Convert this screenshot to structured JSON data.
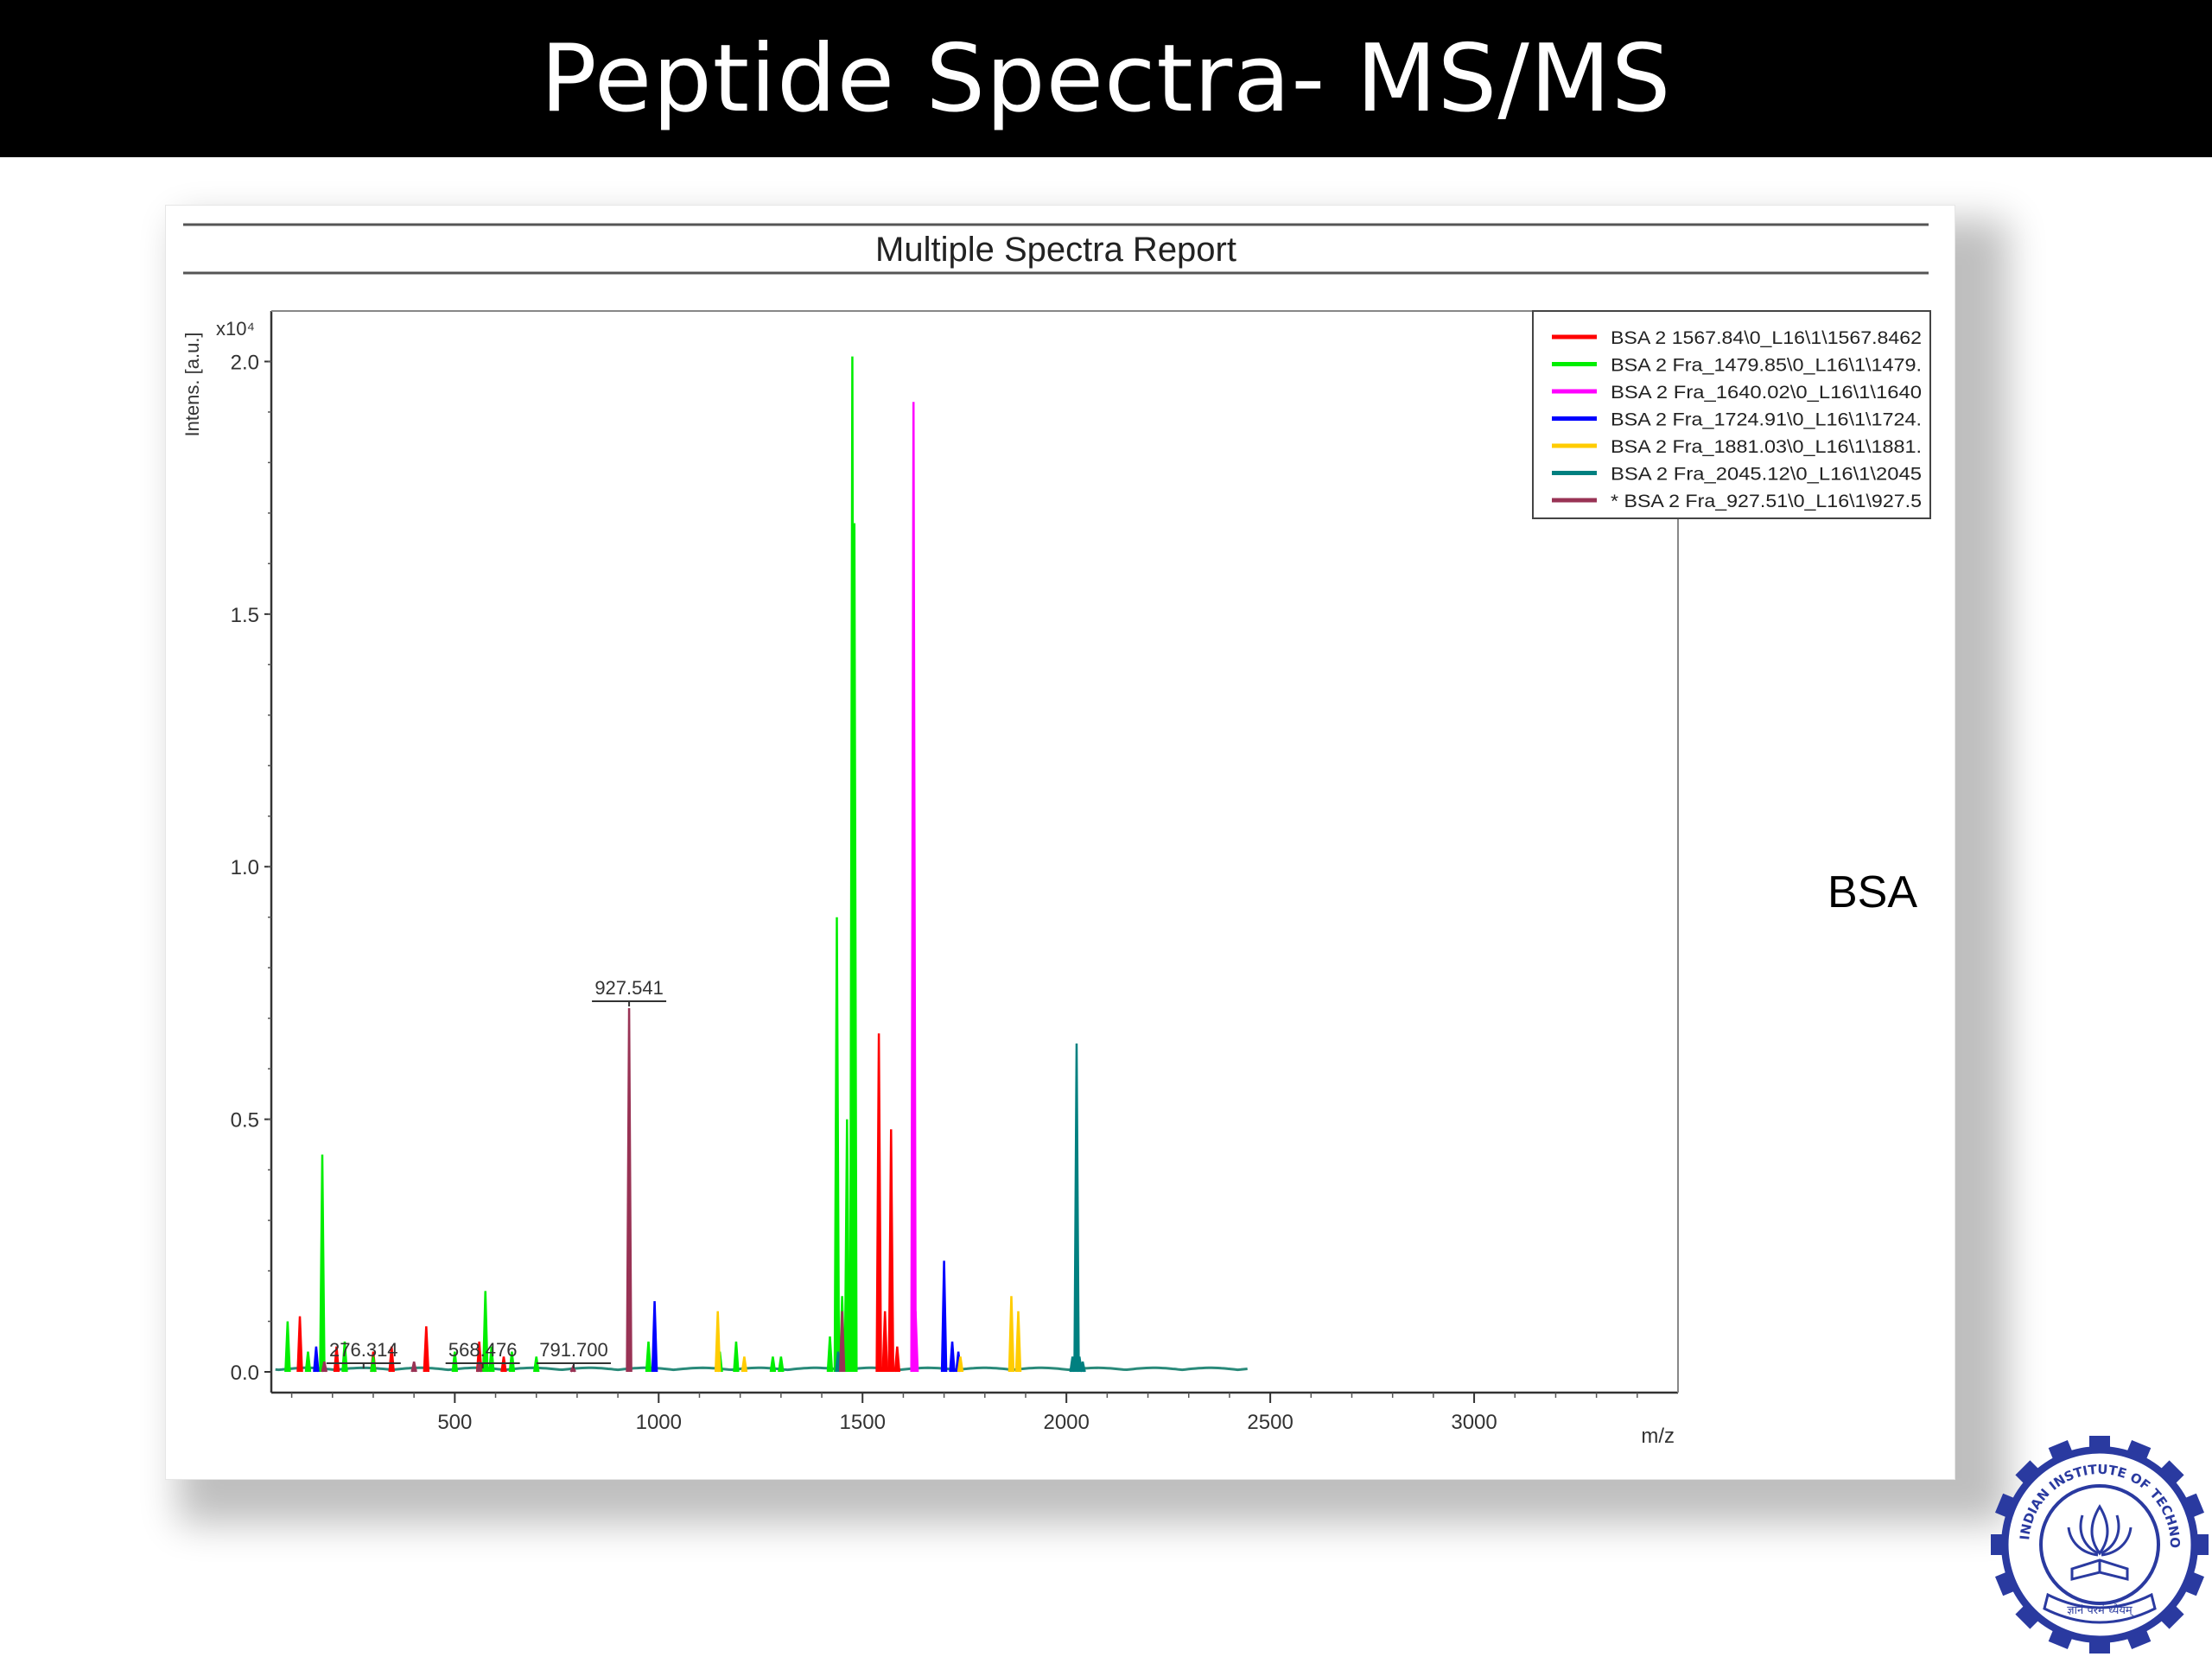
{
  "slide": {
    "title": "Peptide Spectra- MS/MS",
    "annotation": "BSA",
    "logo": {
      "icon": "iit-bombay-emblem-icon",
      "ring_text": "INDIAN INSTITUTE OF TECHNOLOGY BOMBAY",
      "motto": "ज्ञानं परमं ध्येयम्",
      "color": "#2a3aa0"
    }
  },
  "chart_data": {
    "type": "line",
    "title": "Multiple Spectra Report",
    "xlabel": "m/z",
    "ylabel": "Intens. [a.u.]",
    "y_multiplier": "x10⁴",
    "xlim": [
      50,
      3500
    ],
    "ylim": [
      0,
      2.1
    ],
    "x_ticks": [
      500,
      1000,
      1500,
      2000,
      2500,
      3000
    ],
    "y_ticks": [
      0.0,
      0.5,
      1.0,
      1.5,
      2.0
    ],
    "y_tick_labels": [
      "0.0",
      "0.5",
      "1.0",
      "1.5",
      "2.0"
    ],
    "grid": false,
    "legend_position": "top-right",
    "baseline_end": 2450,
    "series": [
      {
        "name": "BSA 2 1567.84\\0_L16\\1\\1567.8462",
        "color": "#ff0000",
        "peaks": [
          [
            120,
            0.11
          ],
          [
            210,
            0.05
          ],
          [
            300,
            0.04
          ],
          [
            345,
            0.05
          ],
          [
            430,
            0.09
          ],
          [
            560,
            0.06
          ],
          [
            620,
            0.03
          ],
          [
            1540,
            0.67
          ],
          [
            1555,
            0.12
          ],
          [
            1570,
            0.48
          ],
          [
            1585,
            0.05
          ]
        ]
      },
      {
        "name": "BSA 2 Fra_1479.85\\0_L16\\1\\1479.",
        "color": "#00ee00",
        "peaks": [
          [
            90,
            0.1
          ],
          [
            140,
            0.04
          ],
          [
            175,
            0.43
          ],
          [
            230,
            0.06
          ],
          [
            300,
            0.03
          ],
          [
            500,
            0.04
          ],
          [
            575,
            0.16
          ],
          [
            590,
            0.05
          ],
          [
            640,
            0.04
          ],
          [
            700,
            0.03
          ],
          [
            975,
            0.06
          ],
          [
            1150,
            0.04
          ],
          [
            1190,
            0.06
          ],
          [
            1280,
            0.03
          ],
          [
            1300,
            0.03
          ],
          [
            1420,
            0.07
          ],
          [
            1437,
            0.9
          ],
          [
            1450,
            0.15
          ],
          [
            1462,
            0.5
          ],
          [
            1475,
            2.01
          ],
          [
            1480,
            1.68
          ]
        ]
      },
      {
        "name": "BSA 2 Fra_1640.02\\0_L16\\1\\1640",
        "color": "#ff00ff",
        "peaks": [
          [
            1625,
            1.92
          ],
          [
            1630,
            0.12
          ]
        ]
      },
      {
        "name": "BSA 2 Fra_1724.91\\0_L16\\1\\1724.",
        "color": "#0000ff",
        "peaks": [
          [
            160,
            0.05
          ],
          [
            990,
            0.14
          ],
          [
            1700,
            0.22
          ],
          [
            1720,
            0.06
          ],
          [
            1735,
            0.04
          ]
        ]
      },
      {
        "name": "BSA 2 Fra_1881.03\\0_L16\\1\\1881.",
        "color": "#ffcc00",
        "peaks": [
          [
            1145,
            0.12
          ],
          [
            1210,
            0.03
          ],
          [
            1740,
            0.03
          ],
          [
            1865,
            0.15
          ],
          [
            1882,
            0.12
          ]
        ]
      },
      {
        "name": "BSA 2 Fra_2045.12\\0_L16\\1\\2045",
        "color": "#008080",
        "peaks": [
          [
            1440,
            0.04
          ],
          [
            2015,
            0.03
          ],
          [
            2025,
            0.65
          ],
          [
            2032,
            0.03
          ],
          [
            2040,
            0.02
          ]
        ]
      },
      {
        "name": "* BSA 2 Fra_927.51\\0_L16\\1\\927.5",
        "color": "#993355",
        "peaks": [
          [
            180,
            0.02
          ],
          [
            400,
            0.02
          ],
          [
            560,
            0.02
          ],
          [
            790,
            0.01
          ],
          [
            927.5,
            0.72
          ],
          [
            1450,
            0.12
          ]
        ]
      }
    ],
    "peak_labels": [
      {
        "text": "927.541",
        "x": 927.5,
        "y": 0.72
      },
      {
        "text": "276.314",
        "x": 276.3,
        "y": 0.055
      },
      {
        "text": "568.476",
        "x": 568.5,
        "y": 0.055
      },
      {
        "text": "791.700",
        "x": 791.7,
        "y": 0.01
      }
    ]
  }
}
